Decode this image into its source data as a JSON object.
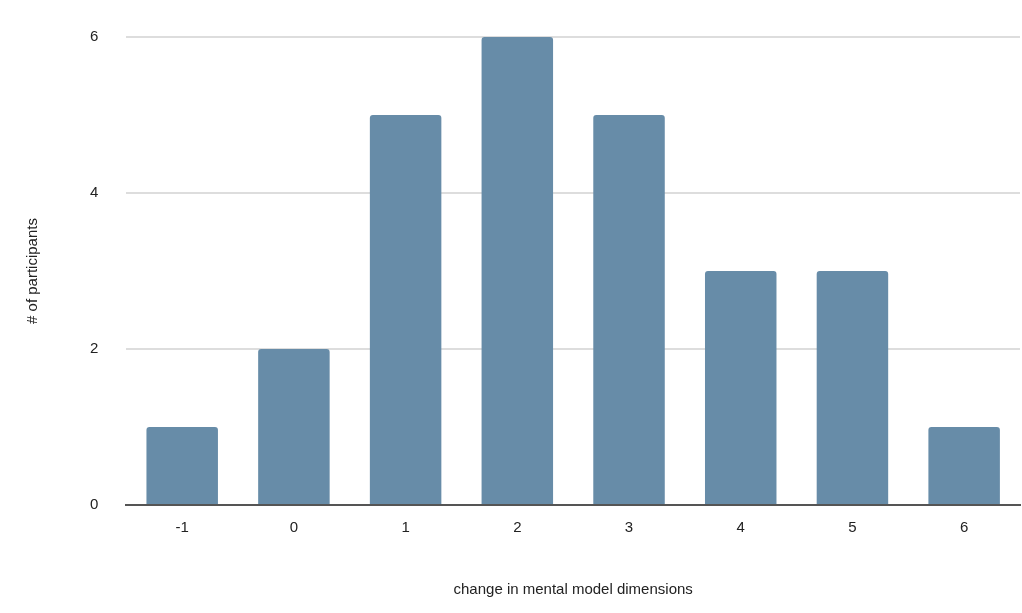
{
  "chart_data": {
    "type": "bar",
    "xlabel": "change in mental model dimensions",
    "ylabel": "# of participants",
    "categories": [
      "-1",
      "0",
      "1",
      "2",
      "3",
      "4",
      "5",
      "6"
    ],
    "values": [
      1,
      2,
      5,
      6,
      5,
      3,
      3,
      1
    ],
    "color": "#678ca8",
    "ylim": [
      0,
      6
    ],
    "yticks": [
      0,
      2,
      4,
      6
    ],
    "grid": "y",
    "legend": false
  }
}
